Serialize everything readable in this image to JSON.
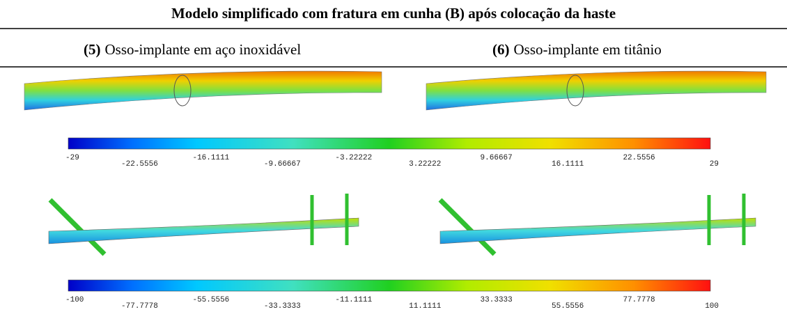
{
  "header": {
    "title": "Modelo simplificado com fratura em cunha (B) após colocação da haste"
  },
  "columns": [
    {
      "number": "(5)",
      "label": "Osso-implante em aço inoxidável"
    },
    {
      "number": "(6)",
      "label": "Osso-implante em titânio"
    }
  ],
  "colorbars": [
    {
      "tick_labels": [
        "-29",
        "-22.5556",
        "-16.1111",
        "-9.66667",
        "-3.22222",
        "3.22222",
        "9.66667",
        "16.1111",
        "22.5556",
        "29"
      ]
    },
    {
      "tick_labels": [
        "-100",
        "-77.7778",
        "-55.5556",
        "-33.3333",
        "-11.1111",
        "11.1111",
        "33.3333",
        "55.5556",
        "77.7778",
        "100"
      ]
    }
  ]
}
